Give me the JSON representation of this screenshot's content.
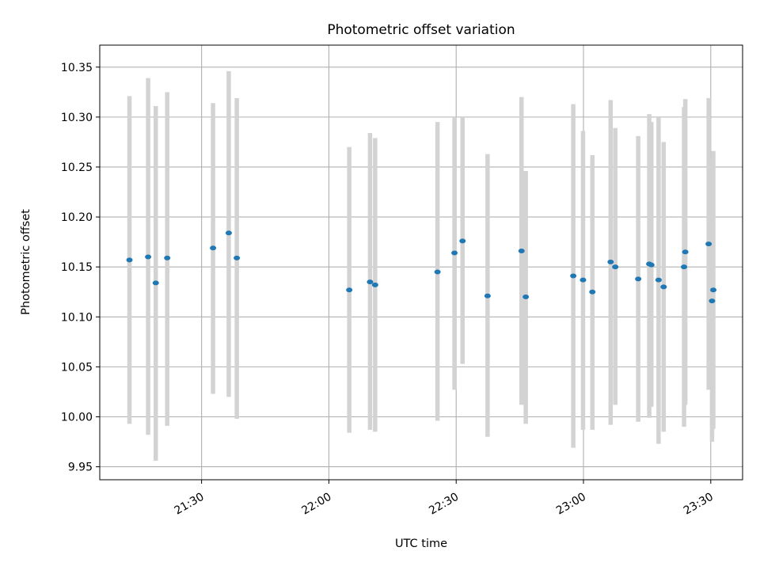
{
  "chart_data": {
    "type": "scatter",
    "title": "Photometric offset variation",
    "xlabel": "UTC time",
    "ylabel": "Photometric offset",
    "x_unit": "UTC time of day (HH:MM:SS)",
    "xlim": [
      "21:06:00",
      "23:37:30"
    ],
    "ylim": [
      9.937,
      10.372
    ],
    "x_ticks": [
      "21:30:00",
      "22:00:00",
      "22:30:00",
      "23:00:00",
      "23:30:00"
    ],
    "x_tick_labels": [
      "21:30",
      "22:00",
      "22:30",
      "23:00",
      "23:30"
    ],
    "y_ticks": [
      9.95,
      10.0,
      10.05,
      10.1,
      10.15,
      10.2,
      10.25,
      10.3,
      10.35
    ],
    "y_tick_labels": [
      "9.95",
      "10.00",
      "10.05",
      "10.10",
      "10.15",
      "10.20",
      "10.25",
      "10.30",
      "10.35"
    ],
    "grid": true,
    "colors": {
      "point": "#1f77b4",
      "error_bar": "#d3d3d3",
      "grid": "#b0b0b0"
    },
    "points": [
      {
        "t": "21:13:00",
        "y": 10.157,
        "lo": 9.993,
        "hi": 10.321
      },
      {
        "t": "21:17:24",
        "y": 10.16,
        "lo": 9.982,
        "hi": 10.339
      },
      {
        "t": "21:19:12",
        "y": 10.134,
        "lo": 9.956,
        "hi": 10.311
      },
      {
        "t": "21:21:54",
        "y": 10.159,
        "lo": 9.991,
        "hi": 10.325
      },
      {
        "t": "21:32:42",
        "y": 10.169,
        "lo": 10.023,
        "hi": 10.314
      },
      {
        "t": "21:36:24",
        "y": 10.184,
        "lo": 10.02,
        "hi": 10.346
      },
      {
        "t": "21:38:18",
        "y": 10.159,
        "lo": 9.998,
        "hi": 10.319
      },
      {
        "t": "22:04:48",
        "y": 10.127,
        "lo": 9.984,
        "hi": 10.27
      },
      {
        "t": "22:09:42",
        "y": 10.135,
        "lo": 9.987,
        "hi": 10.284
      },
      {
        "t": "22:10:54",
        "y": 10.132,
        "lo": 9.985,
        "hi": 10.279
      },
      {
        "t": "22:25:36",
        "y": 10.145,
        "lo": 9.996,
        "hi": 10.295
      },
      {
        "t": "22:29:36",
        "y": 10.164,
        "lo": 10.027,
        "hi": 10.3
      },
      {
        "t": "22:31:30",
        "y": 10.176,
        "lo": 10.053,
        "hi": 10.3
      },
      {
        "t": "22:37:24",
        "y": 10.121,
        "lo": 9.98,
        "hi": 10.263
      },
      {
        "t": "22:45:24",
        "y": 10.166,
        "lo": 10.012,
        "hi": 10.32
      },
      {
        "t": "22:46:24",
        "y": 10.12,
        "lo": 9.993,
        "hi": 10.246
      },
      {
        "t": "22:57:36",
        "y": 10.141,
        "lo": 9.969,
        "hi": 10.313
      },
      {
        "t": "22:59:54",
        "y": 10.137,
        "lo": 9.987,
        "hi": 10.286
      },
      {
        "t": "23:02:06",
        "y": 10.125,
        "lo": 9.987,
        "hi": 10.262
      },
      {
        "t": "23:06:24",
        "y": 10.155,
        "lo": 9.992,
        "hi": 10.317
      },
      {
        "t": "23:07:30",
        "y": 10.15,
        "lo": 10.012,
        "hi": 10.289
      },
      {
        "t": "23:12:54",
        "y": 10.138,
        "lo": 9.995,
        "hi": 10.281
      },
      {
        "t": "23:15:30",
        "y": 10.153,
        "lo": 9.999,
        "hi": 10.303
      },
      {
        "t": "23:16:00",
        "y": 10.152,
        "lo": 10.01,
        "hi": 10.295
      },
      {
        "t": "23:17:42",
        "y": 10.137,
        "lo": 9.973,
        "hi": 10.3
      },
      {
        "t": "23:18:54",
        "y": 10.13,
        "lo": 9.985,
        "hi": 10.275
      },
      {
        "t": "23:23:42",
        "y": 10.15,
        "lo": 9.99,
        "hi": 10.31
      },
      {
        "t": "23:24:00",
        "y": 10.165,
        "lo": 10.012,
        "hi": 10.318
      },
      {
        "t": "23:29:30",
        "y": 10.173,
        "lo": 10.027,
        "hi": 10.319
      },
      {
        "t": "23:30:18",
        "y": 10.116,
        "lo": 9.975,
        "hi": 10.26
      },
      {
        "t": "23:30:36",
        "y": 10.127,
        "lo": 9.988,
        "hi": 10.266
      }
    ]
  }
}
